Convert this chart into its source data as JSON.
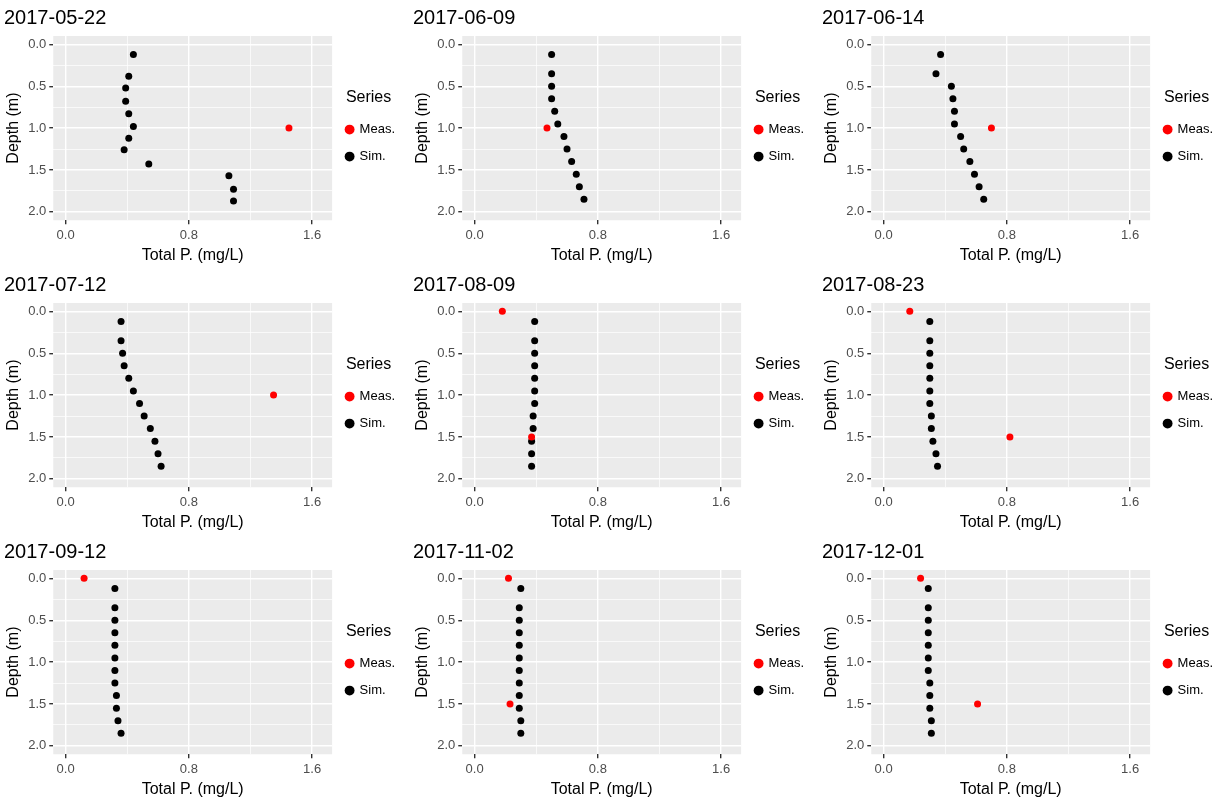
{
  "chart_data": [
    {
      "type": "scatter",
      "title": "2017-05-22",
      "xlabel": "Total P. (mg/L)",
      "ylabel": "Depth (m)",
      "legend_title": "Series",
      "legend": "right",
      "grid": true,
      "marker": "circle",
      "xlim": [
        -0.08,
        1.73
      ],
      "ylim": [
        2.1,
        -0.1
      ],
      "xticks": [
        {
          "value": 0,
          "label": "0.0"
        },
        {
          "value": 0.4,
          "label": null
        },
        {
          "value": 0.8,
          "label": "0.8"
        },
        {
          "value": 1.2,
          "label": null
        },
        {
          "value": 1.6,
          "label": "1.6"
        }
      ],
      "yticks": [
        {
          "value": 0,
          "label": "0.0"
        },
        {
          "value": 0.25,
          "label": null
        },
        {
          "value": 0.5,
          "label": "0.5"
        },
        {
          "value": 0.75,
          "label": null
        },
        {
          "value": 1,
          "label": "1.0"
        },
        {
          "value": 1.25,
          "label": null
        },
        {
          "value": 1.5,
          "label": "1.5"
        },
        {
          "value": 1.75,
          "label": null
        },
        {
          "value": 2,
          "label": "2.0"
        }
      ],
      "series": [
        {
          "name": "Meas.",
          "color": "#ff0000",
          "x": [
            1.45
          ],
          "values": [
            1.0
          ]
        },
        {
          "name": "Sim.",
          "color": "#000000",
          "x": [
            0.44,
            0.41,
            0.39,
            0.39,
            0.41,
            0.44,
            0.41,
            0.38,
            0.54,
            1.06,
            1.09,
            1.09
          ],
          "values": [
            0.12,
            0.38,
            0.52,
            0.68,
            0.83,
            0.98,
            1.12,
            1.26,
            1.43,
            1.57,
            1.73,
            1.87
          ]
        }
      ]
    },
    {
      "type": "scatter",
      "title": "2017-06-09",
      "xlabel": "Total P. (mg/L)",
      "ylabel": "Depth (m)",
      "legend_title": "Series",
      "legend": "right",
      "grid": true,
      "marker": "circle",
      "xlim": [
        -0.08,
        1.73
      ],
      "ylim": [
        2.1,
        -0.1
      ],
      "xticks": [
        {
          "value": 0,
          "label": "0.0"
        },
        {
          "value": 0.4,
          "label": null
        },
        {
          "value": 0.8,
          "label": "0.8"
        },
        {
          "value": 1.2,
          "label": null
        },
        {
          "value": 1.6,
          "label": "1.6"
        }
      ],
      "yticks": [
        {
          "value": 0,
          "label": "0.0"
        },
        {
          "value": 0.25,
          "label": null
        },
        {
          "value": 0.5,
          "label": "0.5"
        },
        {
          "value": 0.75,
          "label": null
        },
        {
          "value": 1,
          "label": "1.0"
        },
        {
          "value": 1.25,
          "label": null
        },
        {
          "value": 1.5,
          "label": "1.5"
        },
        {
          "value": 1.75,
          "label": null
        },
        {
          "value": 2,
          "label": "2.0"
        }
      ],
      "series": [
        {
          "name": "Meas.",
          "color": "#ff0000",
          "x": [
            0.47
          ],
          "values": [
            1.0
          ]
        },
        {
          "name": "Sim.",
          "color": "#000000",
          "x": [
            0.5,
            0.5,
            0.5,
            0.5,
            0.52,
            0.54,
            0.58,
            0.6,
            0.63,
            0.66,
            0.68,
            0.71
          ],
          "values": [
            0.12,
            0.35,
            0.5,
            0.65,
            0.8,
            0.95,
            1.1,
            1.25,
            1.4,
            1.55,
            1.7,
            1.85
          ]
        }
      ]
    },
    {
      "type": "scatter",
      "title": "2017-06-14",
      "xlabel": "Total P. (mg/L)",
      "ylabel": "Depth (m)",
      "legend_title": "Series",
      "legend": "right",
      "grid": true,
      "marker": "circle",
      "xlim": [
        -0.08,
        1.73
      ],
      "ylim": [
        2.1,
        -0.1
      ],
      "xticks": [
        {
          "value": 0,
          "label": "0.0"
        },
        {
          "value": 0.4,
          "label": null
        },
        {
          "value": 0.8,
          "label": "0.8"
        },
        {
          "value": 1.2,
          "label": null
        },
        {
          "value": 1.6,
          "label": "1.6"
        }
      ],
      "yticks": [
        {
          "value": 0,
          "label": "0.0"
        },
        {
          "value": 0.25,
          "label": null
        },
        {
          "value": 0.5,
          "label": "0.5"
        },
        {
          "value": 0.75,
          "label": null
        },
        {
          "value": 1,
          "label": "1.0"
        },
        {
          "value": 1.25,
          "label": null
        },
        {
          "value": 1.5,
          "label": "1.5"
        },
        {
          "value": 1.75,
          "label": null
        },
        {
          "value": 2,
          "label": "2.0"
        }
      ],
      "series": [
        {
          "name": "Meas.",
          "color": "#ff0000",
          "x": [
            0.7
          ],
          "values": [
            1.0
          ]
        },
        {
          "name": "Sim.",
          "color": "#000000",
          "x": [
            0.37,
            0.34,
            0.44,
            0.45,
            0.46,
            0.46,
            0.5,
            0.52,
            0.56,
            0.59,
            0.62,
            0.65
          ],
          "values": [
            0.12,
            0.35,
            0.5,
            0.65,
            0.8,
            0.95,
            1.1,
            1.25,
            1.4,
            1.55,
            1.7,
            1.85
          ]
        }
      ]
    },
    {
      "type": "scatter",
      "title": "2017-07-12",
      "xlabel": "Total P. (mg/L)",
      "ylabel": "Depth (m)",
      "legend_title": "Series",
      "legend": "right",
      "grid": true,
      "marker": "circle",
      "xlim": [
        -0.08,
        1.73
      ],
      "ylim": [
        2.1,
        -0.1
      ],
      "xticks": [
        {
          "value": 0,
          "label": "0.0"
        },
        {
          "value": 0.4,
          "label": null
        },
        {
          "value": 0.8,
          "label": "0.8"
        },
        {
          "value": 1.2,
          "label": null
        },
        {
          "value": 1.6,
          "label": "1.6"
        }
      ],
      "yticks": [
        {
          "value": 0,
          "label": "0.0"
        },
        {
          "value": 0.25,
          "label": null
        },
        {
          "value": 0.5,
          "label": "0.5"
        },
        {
          "value": 0.75,
          "label": null
        },
        {
          "value": 1,
          "label": "1.0"
        },
        {
          "value": 1.25,
          "label": null
        },
        {
          "value": 1.5,
          "label": "1.5"
        },
        {
          "value": 1.75,
          "label": null
        },
        {
          "value": 2,
          "label": "2.0"
        }
      ],
      "series": [
        {
          "name": "Meas.",
          "color": "#ff0000",
          "x": [
            1.35
          ],
          "values": [
            1.0
          ]
        },
        {
          "name": "Sim.",
          "color": "#000000",
          "x": [
            0.36,
            0.36,
            0.37,
            0.38,
            0.41,
            0.44,
            0.48,
            0.51,
            0.55,
            0.58,
            0.6,
            0.62
          ],
          "values": [
            0.12,
            0.35,
            0.5,
            0.65,
            0.8,
            0.95,
            1.1,
            1.25,
            1.4,
            1.55,
            1.7,
            1.85
          ]
        }
      ]
    },
    {
      "type": "scatter",
      "title": "2017-08-09",
      "xlabel": "Total P. (mg/L)",
      "ylabel": "Depth (m)",
      "legend_title": "Series",
      "legend": "right",
      "grid": true,
      "marker": "circle",
      "xlim": [
        -0.08,
        1.73
      ],
      "ylim": [
        2.1,
        -0.1
      ],
      "xticks": [
        {
          "value": 0,
          "label": "0.0"
        },
        {
          "value": 0.4,
          "label": null
        },
        {
          "value": 0.8,
          "label": "0.8"
        },
        {
          "value": 1.2,
          "label": null
        },
        {
          "value": 1.6,
          "label": "1.6"
        }
      ],
      "yticks": [
        {
          "value": 0,
          "label": "0.0"
        },
        {
          "value": 0.25,
          "label": null
        },
        {
          "value": 0.5,
          "label": "0.5"
        },
        {
          "value": 0.75,
          "label": null
        },
        {
          "value": 1,
          "label": "1.0"
        },
        {
          "value": 1.25,
          "label": null
        },
        {
          "value": 1.5,
          "label": "1.5"
        },
        {
          "value": 1.75,
          "label": null
        },
        {
          "value": 2,
          "label": "2.0"
        }
      ],
      "series": [
        {
          "name": "Meas.",
          "color": "#ff0000",
          "x": [
            0.18,
            0.37
          ],
          "values": [
            0.0,
            1.5
          ]
        },
        {
          "name": "Sim.",
          "color": "#000000",
          "x": [
            0.39,
            0.39,
            0.39,
            0.39,
            0.39,
            0.39,
            0.39,
            0.38,
            0.38,
            0.37,
            0.37,
            0.37
          ],
          "values": [
            0.12,
            0.35,
            0.5,
            0.65,
            0.8,
            0.95,
            1.1,
            1.25,
            1.4,
            1.55,
            1.7,
            1.85
          ]
        }
      ]
    },
    {
      "type": "scatter",
      "title": "2017-08-23",
      "xlabel": "Total P. (mg/L)",
      "ylabel": "Depth (m)",
      "legend_title": "Series",
      "legend": "right",
      "grid": true,
      "marker": "circle",
      "xlim": [
        -0.08,
        1.73
      ],
      "ylim": [
        2.1,
        -0.1
      ],
      "xticks": [
        {
          "value": 0,
          "label": "0.0"
        },
        {
          "value": 0.4,
          "label": null
        },
        {
          "value": 0.8,
          "label": "0.8"
        },
        {
          "value": 1.2,
          "label": null
        },
        {
          "value": 1.6,
          "label": "1.6"
        }
      ],
      "yticks": [
        {
          "value": 0,
          "label": "0.0"
        },
        {
          "value": 0.25,
          "label": null
        },
        {
          "value": 0.5,
          "label": "0.5"
        },
        {
          "value": 0.75,
          "label": null
        },
        {
          "value": 1,
          "label": "1.0"
        },
        {
          "value": 1.25,
          "label": null
        },
        {
          "value": 1.5,
          "label": "1.5"
        },
        {
          "value": 1.75,
          "label": null
        },
        {
          "value": 2,
          "label": "2.0"
        }
      ],
      "series": [
        {
          "name": "Meas.",
          "color": "#ff0000",
          "x": [
            0.17,
            0.82
          ],
          "values": [
            0.0,
            1.5
          ]
        },
        {
          "name": "Sim.",
          "color": "#000000",
          "x": [
            0.3,
            0.3,
            0.3,
            0.3,
            0.3,
            0.3,
            0.3,
            0.31,
            0.31,
            0.32,
            0.34,
            0.35
          ],
          "values": [
            0.12,
            0.35,
            0.5,
            0.65,
            0.8,
            0.95,
            1.1,
            1.25,
            1.4,
            1.55,
            1.7,
            1.85
          ]
        }
      ]
    },
    {
      "type": "scatter",
      "title": "2017-09-12",
      "xlabel": "Total P. (mg/L)",
      "ylabel": "Depth (m)",
      "legend_title": "Series",
      "legend": "right",
      "grid": true,
      "marker": "circle",
      "xlim": [
        -0.08,
        1.73
      ],
      "ylim": [
        2.1,
        -0.1
      ],
      "xticks": [
        {
          "value": 0,
          "label": "0.0"
        },
        {
          "value": 0.4,
          "label": null
        },
        {
          "value": 0.8,
          "label": "0.8"
        },
        {
          "value": 1.2,
          "label": null
        },
        {
          "value": 1.6,
          "label": "1.6"
        }
      ],
      "yticks": [
        {
          "value": 0,
          "label": "0.0"
        },
        {
          "value": 0.25,
          "label": null
        },
        {
          "value": 0.5,
          "label": "0.5"
        },
        {
          "value": 0.75,
          "label": null
        },
        {
          "value": 1,
          "label": "1.0"
        },
        {
          "value": 1.25,
          "label": null
        },
        {
          "value": 1.5,
          "label": "1.5"
        },
        {
          "value": 1.75,
          "label": null
        },
        {
          "value": 2,
          "label": "2.0"
        }
      ],
      "series": [
        {
          "name": "Meas.",
          "color": "#ff0000",
          "x": [
            0.12
          ],
          "values": [
            0.0
          ]
        },
        {
          "name": "Sim.",
          "color": "#000000",
          "x": [
            0.32,
            0.32,
            0.32,
            0.32,
            0.32,
            0.32,
            0.32,
            0.32,
            0.33,
            0.33,
            0.34,
            0.36
          ],
          "values": [
            0.12,
            0.35,
            0.5,
            0.65,
            0.8,
            0.95,
            1.1,
            1.25,
            1.4,
            1.55,
            1.7,
            1.85
          ]
        }
      ]
    },
    {
      "type": "scatter",
      "title": "2017-11-02",
      "xlabel": "Total P. (mg/L)",
      "ylabel": "Depth (m)",
      "legend_title": "Series",
      "legend": "right",
      "grid": true,
      "marker": "circle",
      "xlim": [
        -0.08,
        1.73
      ],
      "ylim": [
        2.1,
        -0.1
      ],
      "xticks": [
        {
          "value": 0,
          "label": "0.0"
        },
        {
          "value": 0.4,
          "label": null
        },
        {
          "value": 0.8,
          "label": "0.8"
        },
        {
          "value": 1.2,
          "label": null
        },
        {
          "value": 1.6,
          "label": "1.6"
        }
      ],
      "yticks": [
        {
          "value": 0,
          "label": "0.0"
        },
        {
          "value": 0.25,
          "label": null
        },
        {
          "value": 0.5,
          "label": "0.5"
        },
        {
          "value": 0.75,
          "label": null
        },
        {
          "value": 1,
          "label": "1.0"
        },
        {
          "value": 1.25,
          "label": null
        },
        {
          "value": 1.5,
          "label": "1.5"
        },
        {
          "value": 1.75,
          "label": null
        },
        {
          "value": 2,
          "label": "2.0"
        }
      ],
      "series": [
        {
          "name": "Meas.",
          "color": "#ff0000",
          "x": [
            0.22,
            0.23
          ],
          "values": [
            0.0,
            1.5
          ]
        },
        {
          "name": "Sim.",
          "color": "#000000",
          "x": [
            0.3,
            0.29,
            0.29,
            0.29,
            0.29,
            0.29,
            0.29,
            0.29,
            0.29,
            0.29,
            0.3,
            0.3
          ],
          "values": [
            0.12,
            0.35,
            0.5,
            0.65,
            0.8,
            0.95,
            1.1,
            1.25,
            1.4,
            1.55,
            1.7,
            1.85
          ]
        }
      ]
    },
    {
      "type": "scatter",
      "title": "2017-12-01",
      "xlabel": "Total P. (mg/L)",
      "ylabel": "Depth (m)",
      "legend_title": "Series",
      "legend": "right",
      "grid": true,
      "marker": "circle",
      "xlim": [
        -0.08,
        1.73
      ],
      "ylim": [
        2.1,
        -0.1
      ],
      "xticks": [
        {
          "value": 0,
          "label": "0.0"
        },
        {
          "value": 0.4,
          "label": null
        },
        {
          "value": 0.8,
          "label": "0.8"
        },
        {
          "value": 1.2,
          "label": null
        },
        {
          "value": 1.6,
          "label": "1.6"
        }
      ],
      "yticks": [
        {
          "value": 0,
          "label": "0.0"
        },
        {
          "value": 0.25,
          "label": null
        },
        {
          "value": 0.5,
          "label": "0.5"
        },
        {
          "value": 0.75,
          "label": null
        },
        {
          "value": 1,
          "label": "1.0"
        },
        {
          "value": 1.25,
          "label": null
        },
        {
          "value": 1.5,
          "label": "1.5"
        },
        {
          "value": 1.75,
          "label": null
        },
        {
          "value": 2,
          "label": "2.0"
        }
      ],
      "series": [
        {
          "name": "Meas.",
          "color": "#ff0000",
          "x": [
            0.24,
            0.61
          ],
          "values": [
            0.0,
            1.5
          ]
        },
        {
          "name": "Sim.",
          "color": "#000000",
          "x": [
            0.29,
            0.29,
            0.29,
            0.29,
            0.29,
            0.29,
            0.29,
            0.3,
            0.3,
            0.3,
            0.31,
            0.31
          ],
          "values": [
            0.12,
            0.35,
            0.5,
            0.65,
            0.8,
            0.95,
            1.1,
            1.25,
            1.4,
            1.55,
            1.7,
            1.85
          ]
        }
      ]
    }
  ]
}
